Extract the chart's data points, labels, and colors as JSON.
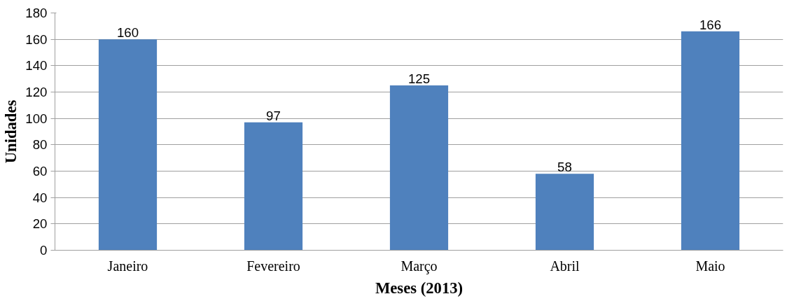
{
  "chart_data": {
    "type": "bar",
    "xlabel": "Meses (2013)",
    "ylabel": "Unidades",
    "categories": [
      "Janeiro",
      "Fevereiro",
      "Março",
      "Abril",
      "Maio"
    ],
    "values": [
      160,
      97,
      125,
      58,
      166
    ],
    "color": "#4f81bd",
    "ylim": [
      0,
      180
    ],
    "yticks": [
      0,
      20,
      40,
      60,
      80,
      100,
      120,
      140,
      160,
      180
    ],
    "grid": "y",
    "data_labels": true
  }
}
